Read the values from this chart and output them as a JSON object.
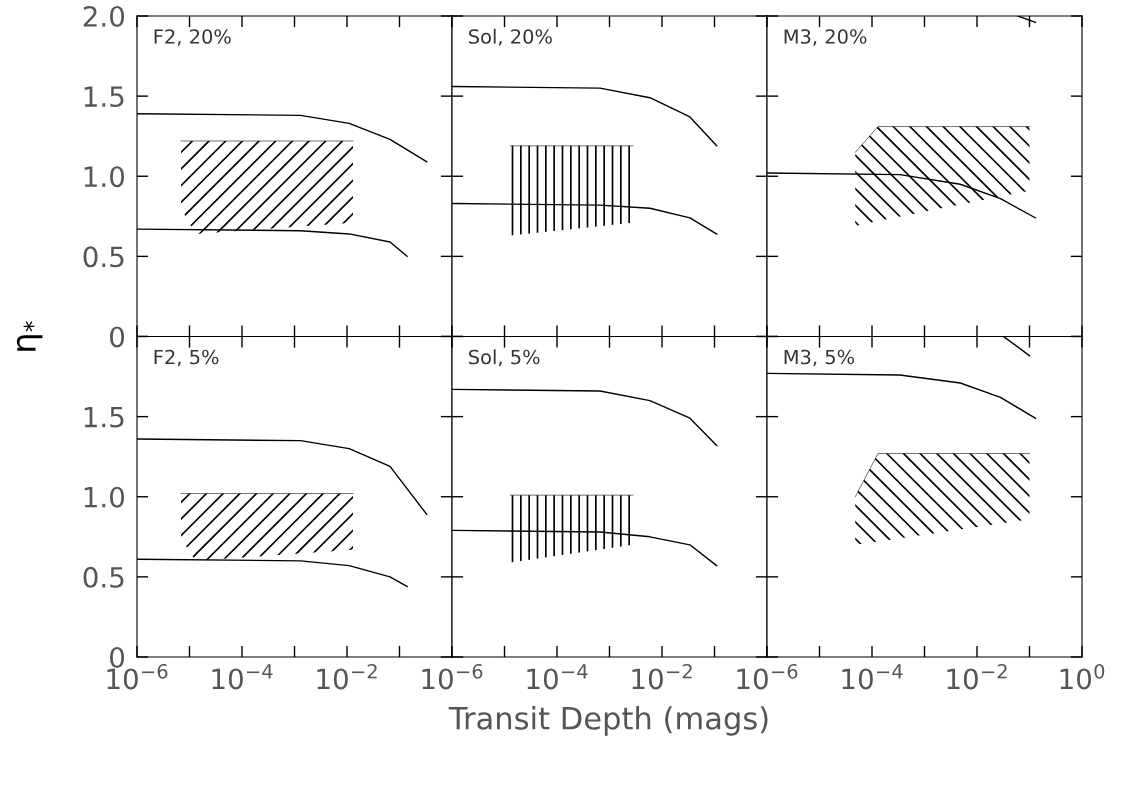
{
  "chart_data": [
    {
      "type": "line",
      "ylabel": "η$_{*}$",
      "annotations": [
        "F2, 20%"
      ],
      "log": "x",
      "xlim": [
        1e-06,
        1
      ],
      "ylim": [
        0,
        2
      ],
      "tick_labels": "y",
      "grid": false,
      "legend": false,
      "xticks": [
        {
          "value": 1e-06,
          "label": null
        },
        {
          "value": 1e-05,
          "label": null
        },
        {
          "value": 0.0001,
          "label": null
        },
        {
          "value": 0.001,
          "label": null
        },
        {
          "value": 0.01,
          "label": null
        },
        {
          "value": 0.1,
          "label": null
        },
        {
          "value": 1,
          "label": null
        }
      ],
      "yticks": [
        {
          "value": 0,
          "label": "0"
        },
        {
          "value": 0.5,
          "label": "0.5"
        },
        {
          "value": 1,
          "label": "1.0"
        },
        {
          "value": 1.5,
          "label": "1.5"
        },
        {
          "value": 2,
          "label": "2.0"
        }
      ],
      "series": [
        {
          "type": "line",
          "color": "#000000",
          "x": [
            1e-06,
            0.0013,
            0.011,
            0.066,
            0.33
          ],
          "values": [
            1.39,
            1.38,
            1.33,
            1.23,
            1.09
          ]
        },
        {
          "type": "line",
          "color": "#000000",
          "x": [
            1e-06,
            0.0013,
            0.011,
            0.066,
            0.14
          ],
          "values": [
            0.67,
            0.66,
            0.64,
            0.59,
            0.5
          ]
        },
        {
          "type": "line",
          "color": "#000000",
          "x": [
            6.9e-06,
            1.3e-05,
            0.013
          ],
          "values": [
            1.22,
            1.22,
            1.22
          ],
          "upper": [
            1.22,
            1.22,
            1.22
          ],
          "lower": [
            0.8,
            0.64,
            0.71
          ]
        }
      ]
    },
    {
      "type": "line",
      "annotations": [
        "Sol, 20%"
      ],
      "log": "x",
      "xlim": [
        1e-06,
        1
      ],
      "ylim": [
        0,
        2
      ],
      "tick_labels": false,
      "grid": false,
      "legend": false,
      "xticks": [
        {
          "value": 1e-06,
          "label": null
        },
        {
          "value": 1e-05,
          "label": null
        },
        {
          "value": 0.0001,
          "label": null
        },
        {
          "value": 0.001,
          "label": null
        },
        {
          "value": 0.01,
          "label": null
        },
        {
          "value": 0.1,
          "label": null
        },
        {
          "value": 1,
          "label": null
        }
      ],
      "yticks": [
        {
          "value": 0,
          "label": null
        },
        {
          "value": 0.5,
          "label": null
        },
        {
          "value": 1,
          "label": null
        },
        {
          "value": 1.5,
          "label": null
        },
        {
          "value": 2,
          "label": null
        }
      ],
      "series": [
        {
          "type": "line",
          "color": "#000000",
          "x": [
            1e-06,
            0.00066,
            0.0059,
            0.034,
            0.11
          ],
          "values": [
            1.56,
            1.55,
            1.49,
            1.37,
            1.19
          ]
        },
        {
          "type": "line",
          "color": "#000000",
          "x": [
            1e-06,
            0.00066,
            0.0059,
            0.034,
            0.11
          ],
          "values": [
            0.83,
            0.82,
            0.8,
            0.74,
            0.64
          ]
        },
        {
          "type": "line",
          "color": "#000000",
          "x": [
            1.3e-05,
            0.0028
          ],
          "values": [
            1.19,
            1.19
          ],
          "upper": [
            1.19,
            1.19
          ],
          "lower": [
            0.63,
            0.71
          ]
        }
      ]
    },
    {
      "type": "line",
      "annotations": [
        "M3, 20%"
      ],
      "log": "x",
      "xlim": [
        1e-06,
        1
      ],
      "ylim": [
        0,
        2
      ],
      "tick_labels": false,
      "grid": false,
      "legend": false,
      "xticks": [
        {
          "value": 1e-06,
          "label": null
        },
        {
          "value": 1e-05,
          "label": null
        },
        {
          "value": 0.0001,
          "label": null
        },
        {
          "value": 0.001,
          "label": null
        },
        {
          "value": 0.01,
          "label": null
        },
        {
          "value": 0.1,
          "label": null
        },
        {
          "value": 1,
          "label": null
        }
      ],
      "yticks": [
        {
          "value": 0,
          "label": null
        },
        {
          "value": 0.5,
          "label": null
        },
        {
          "value": 1,
          "label": null
        },
        {
          "value": 1.5,
          "label": null
        },
        {
          "value": 2,
          "label": null
        }
      ],
      "series": [
        {
          "type": "line",
          "color": "#000000",
          "x": [
            1e-06,
            0.00034,
            0.0048,
            0.028,
            0.13
          ],
          "values": [
            1.02,
            1.01,
            0.95,
            0.86,
            0.74
          ]
        },
        {
          "type": "line",
          "color": "#000000",
          "x": [
            0.06,
            0.13
          ],
          "values": [
            2.0,
            1.96
          ]
        },
        {
          "type": "line",
          "color": "#000000",
          "x": [
            4.8e-05,
            0.00013,
            0.1
          ],
          "values": [
            1.15,
            1.31,
            1.31
          ],
          "upper": [
            1.15,
            1.31,
            1.31
          ],
          "lower": [
            0.69,
            0.72,
            0.91
          ]
        }
      ]
    },
    {
      "type": "line",
      "annotations": [
        "F2, 5%"
      ],
      "log": "x",
      "xlim": [
        1e-06,
        1
      ],
      "ylim": [
        0,
        2
      ],
      "grid": false,
      "legend": false,
      "xticks": [
        {
          "value": 1e-06,
          "label": "10$^{−6}$"
        },
        {
          "value": 1e-05,
          "label": null
        },
        {
          "value": 0.0001,
          "label": "10$^{−4}$"
        },
        {
          "value": 0.001,
          "label": null
        },
        {
          "value": 0.01,
          "label": "10$^{−2}$"
        },
        {
          "value": 0.1,
          "label": null
        },
        {
          "value": 1,
          "label": null
        }
      ],
      "yticks": [
        {
          "value": 0,
          "label": "0"
        },
        {
          "value": 0.5,
          "label": "0.5"
        },
        {
          "value": 1,
          "label": "1.0"
        },
        {
          "value": 1.5,
          "label": "1.5"
        },
        {
          "value": 2,
          "label": null
        }
      ],
      "series": [
        {
          "type": "line",
          "color": "#000000",
          "x": [
            1e-06,
            0.0013,
            0.011,
            0.066,
            0.33
          ],
          "values": [
            1.36,
            1.35,
            1.3,
            1.19,
            0.89
          ]
        },
        {
          "type": "line",
          "color": "#000000",
          "x": [
            1e-06,
            0.0013,
            0.011,
            0.066,
            0.14
          ],
          "values": [
            0.61,
            0.6,
            0.57,
            0.5,
            0.44
          ]
        },
        {
          "type": "line",
          "color": "#000000",
          "x": [
            6.9e-06,
            1.3e-05,
            0.013
          ],
          "values": [
            1.02,
            1.02,
            1.02
          ],
          "upper": [
            1.02,
            1.02,
            1.02
          ],
          "lower": [
            0.74,
            0.6,
            0.67
          ]
        }
      ]
    },
    {
      "type": "line",
      "xlabel": "Transit Depth (mags)",
      "annotations": [
        "Sol, 5%"
      ],
      "log": "x",
      "xlim": [
        1e-06,
        1
      ],
      "ylim": [
        0,
        2
      ],
      "tick_labels": "x",
      "grid": false,
      "legend": false,
      "xticks": [
        {
          "value": 1e-06,
          "label": "10$^{−6}$"
        },
        {
          "value": 1e-05,
          "label": null
        },
        {
          "value": 0.0001,
          "label": "10$^{−4}$"
        },
        {
          "value": 0.001,
          "label": null
        },
        {
          "value": 0.01,
          "label": "10$^{−2}$"
        },
        {
          "value": 0.1,
          "label": null
        },
        {
          "value": 1,
          "label": null
        }
      ],
      "yticks": [
        {
          "value": 0,
          "label": null
        },
        {
          "value": 0.5,
          "label": null
        },
        {
          "value": 1,
          "label": null
        },
        {
          "value": 1.5,
          "label": null
        },
        {
          "value": 2,
          "label": null
        }
      ],
      "series": [
        {
          "type": "line",
          "color": "#000000",
          "x": [
            1e-06,
            0.00066,
            0.0059,
            0.034,
            0.11
          ],
          "values": [
            1.67,
            1.66,
            1.6,
            1.49,
            1.32
          ]
        },
        {
          "type": "line",
          "color": "#000000",
          "x": [
            1e-06,
            0.00066,
            0.0059,
            0.034,
            0.11
          ],
          "values": [
            0.79,
            0.78,
            0.75,
            0.7,
            0.57
          ]
        },
        {
          "type": "line",
          "color": "#000000",
          "x": [
            1.3e-05,
            0.0028
          ],
          "values": [
            1.01,
            1.01
          ],
          "upper": [
            1.01,
            1.01
          ],
          "lower": [
            0.59,
            0.7
          ]
        }
      ]
    },
    {
      "type": "line",
      "annotations": [
        "M3, 5%"
      ],
      "log": "x",
      "xlim": [
        1e-06,
        1
      ],
      "ylim": [
        0,
        2
      ],
      "tick_labels": "x",
      "grid": false,
      "legend": false,
      "xticks": [
        {
          "value": 1e-06,
          "label": "10$^{−6}$"
        },
        {
          "value": 1e-05,
          "label": null
        },
        {
          "value": 0.0001,
          "label": "10$^{−4}$"
        },
        {
          "value": 0.001,
          "label": null
        },
        {
          "value": 0.01,
          "label": "10$^{−2}$"
        },
        {
          "value": 0.1,
          "label": null
        },
        {
          "value": 1,
          "label": "10$^{0}$"
        }
      ],
      "yticks": [
        {
          "value": 0,
          "label": null
        },
        {
          "value": 0.5,
          "label": null
        },
        {
          "value": 1,
          "label": null
        },
        {
          "value": 1.5,
          "label": null
        },
        {
          "value": 2,
          "label": null
        }
      ],
      "series": [
        {
          "type": "line",
          "color": "#000000",
          "x": [
            1e-06,
            0.00034,
            0.0048,
            0.028,
            0.13
          ],
          "values": [
            1.77,
            1.76,
            1.71,
            1.62,
            1.49
          ]
        },
        {
          "type": "line",
          "color": "#000000",
          "x": [
            0.032,
            0.1
          ],
          "values": [
            2.0,
            1.88
          ]
        },
        {
          "type": "line",
          "color": "#000000",
          "x": [
            4.8e-05,
            0.00013,
            0.1
          ],
          "values": [
            1.0,
            1.27,
            1.27
          ],
          "upper": [
            1.0,
            1.27,
            1.27
          ],
          "lower": [
            0.7,
            0.72,
            0.86
          ]
        }
      ]
    }
  ]
}
